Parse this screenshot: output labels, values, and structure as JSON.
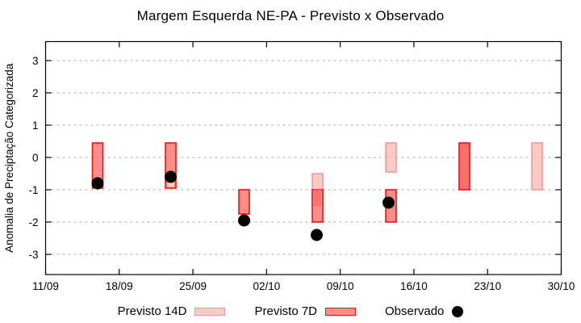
{
  "chart_data": {
    "type": "bar",
    "title": "Margem Esquerda NE-PA - Previsto x Observado",
    "ylabel": "Anomalia de Preciptação Categorizada",
    "x_ticks": [
      "11/09",
      "18/09",
      "25/09",
      "02/10",
      "09/10",
      "16/10",
      "23/10",
      "30/10"
    ],
    "y_ticks": [
      3,
      2,
      1,
      0,
      -1,
      -2,
      -3
    ],
    "ylim": [
      -3.6,
      3.6
    ],
    "grid": "horizontal-dashed",
    "legend": [
      {
        "label": "Previsto 14D",
        "swatch": "pink-box",
        "fill": "#FACBC6",
        "stroke": "#F09B92"
      },
      {
        "label": "Previsto 7D",
        "swatch": "red-box",
        "fill": "#FC8D89",
        "stroke": "#E91414"
      },
      {
        "label": "Observado",
        "swatch": "black-dot",
        "fill": "#000000"
      }
    ],
    "clusters": [
      {
        "date": "16/09",
        "x": 121,
        "boxes": [
          {
            "style": "p7",
            "from": 0.45,
            "to": -0.95
          }
        ],
        "observed": -0.8
      },
      {
        "date": "23/09",
        "x": 211.5,
        "boxes": [
          {
            "style": "p7",
            "from": 0.45,
            "to": -0.95
          },
          {
            "style": "p14i",
            "from": -0.78,
            "to": -0.92
          }
        ],
        "observed": -0.6
      },
      {
        "date": "30/09",
        "x": 302.5,
        "boxes": [
          {
            "style": "p7",
            "from": -1.0,
            "to": -1.75
          }
        ],
        "observed": -1.95
      },
      {
        "date": "07/10",
        "x": 393.5,
        "boxes": [
          {
            "style": "p14",
            "from": -0.5,
            "to": -1.5
          },
          {
            "style": "p7",
            "from": -1.0,
            "to": -2.0
          },
          {
            "style": "bothi",
            "from": -1.0,
            "to": -1.5
          }
        ],
        "observed": -2.4,
        "observed_dx": -1
      },
      {
        "date": "14/10",
        "x": 484.5,
        "boxes": [
          {
            "style": "p14",
            "from": 0.45,
            "to": -0.45
          },
          {
            "style": "p7",
            "from": -1.0,
            "to": -2.0
          }
        ],
        "observed": -1.4,
        "observed_dx": -3
      },
      {
        "date": "21/10",
        "x": 575.5,
        "boxes": [
          {
            "style": "both",
            "from": 0.45,
            "to": -1.0
          }
        ]
      },
      {
        "date": "28/10",
        "x": 665.5,
        "boxes": [
          {
            "style": "p14",
            "from": 0.45,
            "to": -1.0
          }
        ]
      }
    ],
    "styles": {
      "p14": {
        "fill": "#FACBC6",
        "stroke": "#F09B92",
        "name": "bar-previsto-14d"
      },
      "p7": {
        "fill": "#FC8D89",
        "stroke": "#E91414",
        "name": "bar-previsto-7d"
      },
      "both": {
        "fill": "#F9716C",
        "stroke": "#E91414",
        "name": "bar-previsto-overlap"
      },
      "p14i": {
        "fill": "#FACBC6",
        "inset": 2,
        "name": "bar-previsto-14d-segment"
      },
      "bothi": {
        "fill": "#F9716C",
        "inset": 2,
        "name": "bar-previsto-overlap-segment"
      }
    },
    "colors": {
      "grid": "#A9A9A9",
      "axis": "#000000",
      "dot": "#000000",
      "background": "#FFFFFF"
    }
  }
}
